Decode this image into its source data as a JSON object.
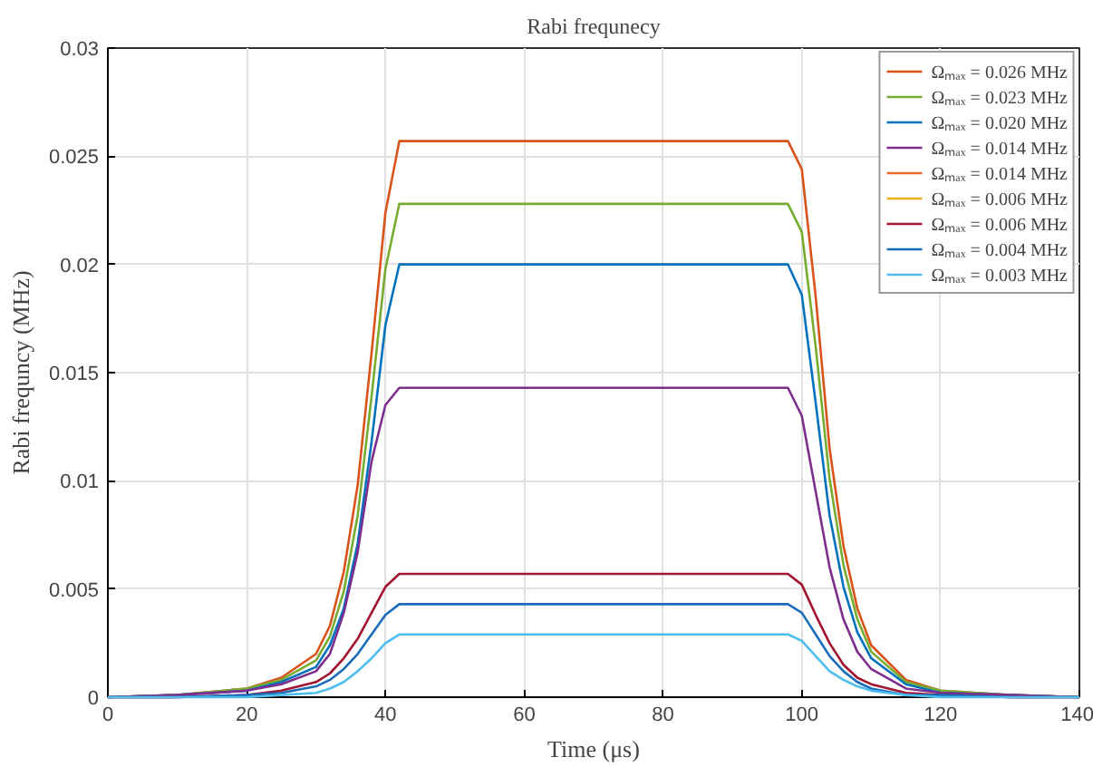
{
  "chart_data": {
    "type": "line",
    "title": "Rabi frequnecy",
    "xlabel": "Time (μs)",
    "ylabel": "Rabi frequncy (MHz)",
    "x": [
      0,
      10,
      20,
      25,
      30,
      32,
      34,
      36,
      38,
      40,
      42,
      98,
      100,
      102,
      104,
      106,
      108,
      110,
      115,
      120,
      130,
      140
    ],
    "xlim": [
      0,
      140
    ],
    "xticks": [
      0,
      20,
      40,
      60,
      80,
      100,
      120,
      140
    ],
    "ylim": [
      0,
      0.03
    ],
    "yticks": [
      0,
      0.005,
      0.01,
      0.015,
      0.02,
      0.025,
      0.03
    ],
    "grid": true,
    "legend": "top right",
    "line_style": "solid",
    "marker": "none",
    "series": [
      {
        "name": "Ωₘₐₓ = 0.026 MHz",
        "color": "#d95319",
        "values": [
          0,
          0.0001,
          0.0004,
          0.0009,
          0.002,
          0.0033,
          0.0058,
          0.0098,
          0.0159,
          0.0224,
          0.0257,
          0.0257,
          0.0244,
          0.0185,
          0.0115,
          0.007,
          0.0041,
          0.0024,
          0.0008,
          0.0003,
          0.0001,
          0
        ]
      },
      {
        "name": "Ωₘₐₓ = 0.023 MHz",
        "color": "#77ac30",
        "values": [
          0,
          0.0001,
          0.0004,
          0.0008,
          0.0017,
          0.0028,
          0.0049,
          0.0084,
          0.0139,
          0.0198,
          0.0228,
          0.0228,
          0.0215,
          0.0162,
          0.0101,
          0.0061,
          0.0036,
          0.0021,
          0.0007,
          0.0003,
          0.0001,
          0
        ]
      },
      {
        "name": "Ωₘₐₓ = 0.020 MHz",
        "color": "#0072bd",
        "values": [
          0,
          0.0001,
          0.0003,
          0.0007,
          0.0014,
          0.0024,
          0.0041,
          0.0071,
          0.0118,
          0.0172,
          0.02,
          0.02,
          0.0186,
          0.0136,
          0.0084,
          0.0051,
          0.003,
          0.0018,
          0.0006,
          0.0002,
          0.0001,
          0
        ]
      },
      {
        "name": "Ωₘₐₓ = 0.014 MHz",
        "color": "#7e2f8e",
        "values": [
          0,
          0.0001,
          0.0003,
          0.0006,
          0.0012,
          0.002,
          0.0039,
          0.0067,
          0.0109,
          0.0135,
          0.0143,
          0.0143,
          0.013,
          0.0095,
          0.006,
          0.0036,
          0.0021,
          0.0013,
          0.0004,
          0.0002,
          0.0001,
          0
        ]
      },
      {
        "name": "Ωₘₐₓ = 0.014 MHz",
        "color": "#ec6a2c",
        "values": [
          null,
          null,
          null,
          null,
          null,
          null,
          null,
          null,
          null,
          null,
          null,
          null,
          null,
          null,
          null,
          null,
          null,
          null,
          null,
          null,
          null,
          null
        ]
      },
      {
        "name": "Ωₘₐₓ = 0.006 MHz",
        "color": "#edb120",
        "values": [
          null,
          null,
          null,
          null,
          null,
          null,
          null,
          null,
          null,
          null,
          null,
          null,
          null,
          null,
          null,
          null,
          null,
          null,
          null,
          null,
          null,
          null
        ]
      },
      {
        "name": "Ωₘₐₓ = 0.006 MHz",
        "color": "#a2142f",
        "values": [
          0,
          0,
          0.0001,
          0.0003,
          0.0007,
          0.0011,
          0.0018,
          0.0027,
          0.0039,
          0.0051,
          0.0057,
          0.0057,
          0.0052,
          0.0038,
          0.0025,
          0.0015,
          0.0009,
          0.0006,
          0.0002,
          0.0001,
          0,
          0
        ]
      },
      {
        "name": "Ωₘₐₓ = 0.004 MHz",
        "color": "#1a6cb8",
        "values": [
          0,
          0,
          0.0001,
          0.0002,
          0.0005,
          0.0008,
          0.0013,
          0.002,
          0.0029,
          0.0038,
          0.0043,
          0.0043,
          0.0039,
          0.0029,
          0.0019,
          0.0012,
          0.0007,
          0.0004,
          0.0001,
          0.0001,
          0,
          0
        ]
      },
      {
        "name": "Ωₘₐₓ = 0.003 MHz",
        "color": "#4dbeee",
        "values": [
          0,
          0,
          0,
          0.0001,
          0.0002,
          0.0004,
          0.0007,
          0.0012,
          0.0018,
          0.0025,
          0.0029,
          0.0029,
          0.0026,
          0.0019,
          0.0012,
          0.0008,
          0.0005,
          0.0003,
          0.0001,
          0,
          0,
          0
        ]
      }
    ]
  }
}
